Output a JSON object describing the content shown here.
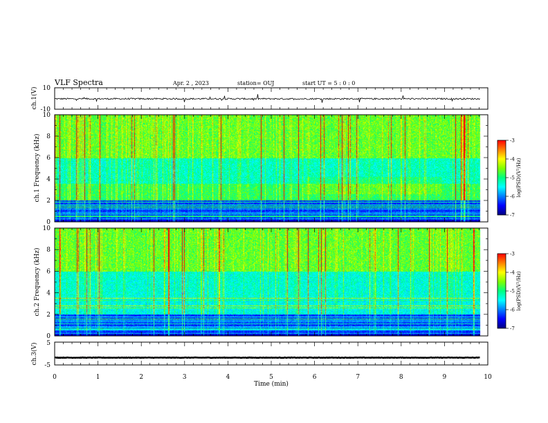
{
  "header": {
    "title": "VLF Spectra",
    "date": "Apr. 2 , 2023",
    "station": "station= OUJ",
    "start": "start UT =  5 : 0 : 0"
  },
  "colors": {
    "spectrogram_scale": [
      "#000080",
      "#0000ff",
      "#0080ff",
      "#00ffff",
      "#00ff80",
      "#80ff00",
      "#ffff00",
      "#ff8000",
      "#ff0000",
      "#ffffff"
    ],
    "trace": "#000000"
  },
  "chart_data": [
    {
      "type": "line",
      "panel": "ch1-waveform",
      "ylabel": "ch.1(V)",
      "ylim": [
        -10,
        10
      ],
      "ytick_labels": [
        "10",
        "-10"
      ],
      "xlim": [
        0,
        10
      ],
      "x_end": 9.82,
      "baseline": -0.3,
      "noise_amplitude": 0.7
    },
    {
      "type": "heatmap",
      "panel": "ch1-spectrogram",
      "ylabel": "ch.1 Frequency (kHz)",
      "ylim": [
        0,
        10
      ],
      "ytick_labels": [
        "0",
        "2",
        "4",
        "6",
        "8",
        "10"
      ],
      "xlim": [
        0,
        10
      ],
      "x_end": 9.82,
      "colorbar": {
        "label": "log(PSD)(V²/Hz)",
        "range": [
          -7,
          -3
        ],
        "tick_labels": [
          "-3",
          "-4",
          "-5",
          "-6",
          "-7"
        ]
      }
    },
    {
      "type": "heatmap",
      "panel": "ch2-spectrogram",
      "ylabel": "ch.2 Frequency (kHz)",
      "ylim": [
        0,
        10
      ],
      "ytick_labels": [
        "0",
        "2",
        "4",
        "6",
        "8",
        "10"
      ],
      "xlim": [
        0,
        10
      ],
      "x_end": 9.82,
      "colorbar": {
        "label": "log(PSD)(V²/Hz)",
        "range": [
          -7,
          -3
        ],
        "tick_labels": [
          "-3",
          "-4",
          "-5",
          "-6",
          "-7"
        ]
      }
    },
    {
      "type": "line",
      "panel": "ch3-waveform",
      "ylabel": "ch.3(V)",
      "ylim": [
        -5,
        5
      ],
      "ytick_labels": [
        "5",
        "-5"
      ],
      "xlim": [
        0,
        10
      ],
      "x_end": 9.82,
      "baseline": -1.8,
      "noise_amplitude": 0.1
    }
  ],
  "xaxis": {
    "label": "Time (min)",
    "tick_labels": [
      "0",
      "1",
      "2",
      "3",
      "4",
      "5",
      "6",
      "7",
      "8",
      "9",
      "10"
    ]
  }
}
